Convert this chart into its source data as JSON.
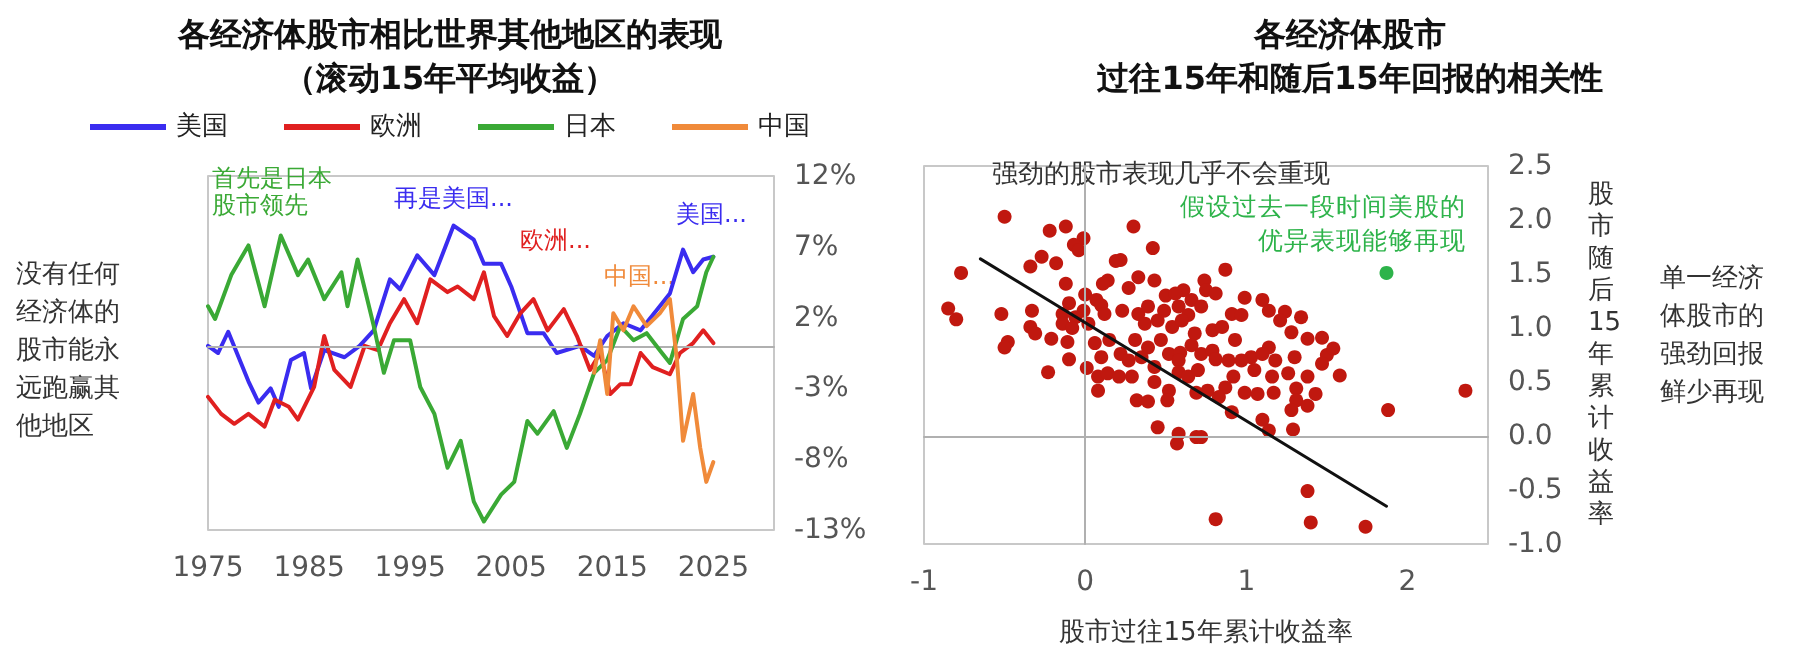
{
  "chart_data": [
    {
      "type": "line",
      "title": "各经济体股市相比世界其他地区的表现",
      "subtitle": "（滚动15年平均收益）",
      "legend": "top",
      "xlim": [
        1975,
        2031
      ],
      "xticks": [
        1975,
        1985,
        1995,
        2005,
        2015,
        2025
      ],
      "ylim": [
        -13,
        12
      ],
      "yticks": [
        {
          "value": 12,
          "label": "12%"
        },
        {
          "value": 7,
          "label": "7%"
        },
        {
          "value": 2,
          "label": "2%"
        },
        {
          "value": -3,
          "label": "-3%"
        },
        {
          "value": -8,
          "label": "-8%"
        },
        {
          "value": -13,
          "label": "-13%"
        }
      ],
      "ref_lines": [
        {
          "axis": "y",
          "value": 0,
          "color": "#b0b0b0"
        }
      ],
      "annotations": [
        "没有任何经济体的股市能永远跑赢其他地区",
        "首先是日本股市领先",
        "再是美国...",
        "欧洲...",
        "中国...",
        "美国..."
      ],
      "series": [
        {
          "name": "美国",
          "color": "#3a2cf0",
          "x": [
            1975,
            1976,
            1977,
            1979,
            1980,
            1981.2,
            1982,
            1983.2,
            1984.5,
            1985.2,
            1986.5,
            1988.5,
            1990,
            1991.4,
            1993,
            1994,
            1995.7,
            1997.4,
            1999.3,
            2001.3,
            2002.3,
            2004,
            2005,
            2006.6,
            2008.2,
            2009.5,
            2011.8,
            2013.2,
            2014.5,
            2016.1,
            2017.8,
            2019.7,
            2020.7,
            2022,
            2023,
            2024,
            2025
          ],
          "values": [
            0,
            -0.5,
            1,
            -2.5,
            -4,
            -3,
            -4.3,
            -1,
            -0.5,
            -3,
            -0.3,
            -0.8,
            0,
            1.1,
            4.7,
            4,
            6.4,
            5,
            8.5,
            7.5,
            5.8,
            5.8,
            4.2,
            0.9,
            0.9,
            -0.5,
            0,
            -0.7,
            0.7,
            1.6,
            1.1,
            2.8,
            3.7,
            6.8,
            5.2,
            6.1,
            6.3
          ]
        },
        {
          "name": "欧洲",
          "color": "#e02020",
          "x": [
            1975,
            1976.3,
            1977.6,
            1979,
            1980.6,
            1981.6,
            1983,
            1983.9,
            1985.5,
            1986.5,
            1987.5,
            1989.1,
            1990.5,
            1991.8,
            1993,
            1994.4,
            1995.7,
            1997,
            1998.7,
            1999.7,
            2001.3,
            2002.3,
            2003.3,
            2004.6,
            2005.9,
            2007.2,
            2008.6,
            2010.2,
            2011.5,
            2012.8,
            2013.8,
            2014.8,
            2015.8,
            2016.8,
            2017.8,
            2019,
            2020.7,
            2021.7,
            2023,
            2024,
            2025
          ],
          "values": [
            -3.6,
            -4.8,
            -5.5,
            -4.8,
            -5.7,
            -3.8,
            -4.3,
            -5.2,
            -2.9,
            0.7,
            -1.7,
            -2.9,
            0,
            -0.3,
            1.6,
            3.3,
            1.6,
            4.7,
            3.8,
            4.2,
            3.3,
            5.2,
            2.1,
            0.7,
            2.3,
            3.3,
            1.1,
            2.6,
            0.7,
            -1.7,
            -0.5,
            -3.4,
            -2.7,
            -2.7,
            -0.5,
            -1.5,
            -2,
            -0.5,
            0.2,
            1.1,
            0.2
          ]
        },
        {
          "name": "日本",
          "color": "#3aa935",
          "x": [
            1975,
            1975.7,
            1977.3,
            1979,
            1980.6,
            1982.2,
            1983.9,
            1984.9,
            1986.5,
            1988.2,
            1988.8,
            1989.8,
            1991.4,
            1992.4,
            1993.4,
            1995,
            1996,
            1997.4,
            1998.7,
            2000,
            2001.3,
            2002.3,
            2004,
            2005.3,
            2006.6,
            2007.6,
            2009.2,
            2010.5,
            2011.8,
            2013.2,
            2014.5,
            2015.8,
            2017.1,
            2018.4,
            2019.7,
            2020.7,
            2022,
            2023.4,
            2024.3,
            2025
          ],
          "values": [
            2.8,
            1.9,
            5,
            7.1,
            2.8,
            7.8,
            5,
            6.1,
            3.3,
            5.2,
            2.8,
            6.1,
            1.4,
            -1.9,
            0.4,
            0.4,
            -2.9,
            -4.8,
            -8.6,
            -6.7,
            -11,
            -12.4,
            -10.5,
            -9.6,
            -5.3,
            -6.2,
            -4.6,
            -7.2,
            -4.8,
            -1.9,
            -1,
            1.4,
            0.4,
            0.9,
            -0.3,
            -1.2,
            1.9,
            2.8,
            5.2,
            6.3
          ]
        },
        {
          "name": "中国",
          "color": "#f08a3a",
          "x": [
            2013.2,
            2013.8,
            2014.5,
            2015.1,
            2016.1,
            2017.1,
            2018.4,
            2019.7,
            2020.7,
            2021.4,
            2022,
            2023,
            2023.7,
            2024.3,
            2025
          ],
          "values": [
            -1.9,
            0.4,
            -3.4,
            2.3,
            1.1,
            2.8,
            1.4,
            2.3,
            3.3,
            -1,
            -6.7,
            -3.4,
            -7.2,
            -9.6,
            -8.2
          ]
        }
      ]
    },
    {
      "type": "scatter",
      "title": "各经济体股市",
      "subtitle": "过往15年和随后15年回报的相关性",
      "xlabel": "股市过往15年累计收益率",
      "ylabel": "股市随后15年累计收益率",
      "xlim": [
        -1,
        2.5
      ],
      "xticks": [
        -1,
        0,
        1,
        2
      ],
      "ylim": [
        -1,
        2.5
      ],
      "yticks": [
        2.5,
        {
          "value": 2,
          "label": "2.0"
        },
        1.5,
        {
          "value": 1,
          "label": "1.0"
        },
        0.5,
        {
          "value": 0,
          "label": "0.0"
        },
        -0.5,
        {
          "value": -1,
          "label": "-1.0"
        }
      ],
      "ref_lines": [
        {
          "axis": "x",
          "value": 0,
          "color": "#b0b0b0"
        },
        {
          "axis": "y",
          "value": 0,
          "color": "#b0b0b0"
        }
      ],
      "annotations": [
        "强劲的股市表现几乎不会重现",
        "单一经济体股市的强劲回报鲜少再现",
        {
          "text": "假设过去一段时间美股的优异表现能够再现",
          "x": 1.87,
          "y": 1.51
        }
      ],
      "series": [
        {
          "color": "#c0180f",
          "x": [
            -0.5,
            0.3,
            -0.12,
            -0.22,
            -0.01,
            -0.07,
            -0.04,
            0.42,
            -0.27,
            -0.18,
            -0.34,
            -0.77,
            0.22,
            0.19,
            0.87,
            0.33,
            0.43,
            0.14,
            0.11,
            0.74,
            -0.12,
            0.75,
            0.61,
            0.27,
            0.5,
            0.56,
            0.81,
            0.99,
            1.1,
            0,
            -0.1,
            0.07,
            0.1,
            0.66,
            -0.85,
            -0.8,
            -0.52,
            -0.33,
            -0.14,
            -0.01,
            -0.06,
            0.12,
            0.23,
            0.33,
            0.39,
            0.49,
            0.58,
            0.64,
            0.72,
            0.91,
            0.97,
            1.14,
            1.24,
            1.34,
            1.21,
            -0.14,
            0.02,
            -0.34,
            -0.08,
            -0.31,
            0.37,
            0.45,
            0.54,
            0.6,
            0.68,
            0.79,
            0.85,
            1.38,
            1.47,
            -0.48,
            -0.5,
            -0.21,
            -0.11,
            0.06,
            0.15,
            0.22,
            0.31,
            0.39,
            0.47,
            0.52,
            0.59,
            0.66,
            0.72,
            0.79,
            0.93,
            1.03,
            1.14,
            1.28,
            1.5,
            1.54,
            -0.23,
            -0.1,
            0.01,
            0.1,
            0.27,
            0.35,
            0.58,
            0.81,
            0.89,
            0.97,
            1.1,
            1.18,
            1.3,
            1.47,
            1.58,
            0.08,
            0.14,
            0.21,
            0.29,
            0.43,
            0.58,
            0.64,
            0.7,
            0.92,
            1.05,
            1.16,
            1.26,
            1.38,
            0.08,
            0.43,
            0.52,
            0.69,
            0.76,
            0.87,
            0.99,
            1.07,
            1.17,
            1.31,
            1.43,
            0.32,
            0.39,
            0.51,
            0.83,
            1.31,
            1.38,
            0.91,
            1.1,
            1.28,
            1.88,
            2.36,
            0.45,
            0.58,
            0.57,
            0.69,
            0.72,
            1.14,
            1.29,
            1.38,
            0.81,
            1.4,
            1.74
          ],
          "values": [
            2.03,
            1.94,
            1.94,
            1.9,
            1.83,
            1.77,
            1.72,
            1.74,
            1.66,
            1.6,
            1.57,
            1.51,
            1.63,
            1.62,
            1.54,
            1.47,
            1.44,
            1.44,
            1.41,
            1.44,
            1.41,
            1.35,
            1.35,
            1.37,
            1.3,
            1.32,
            1.32,
            1.28,
            1.26,
            1.31,
            1.23,
            1.26,
            1.21,
            1.26,
            1.18,
            1.08,
            1.13,
            1.16,
            1.13,
            1.16,
            1.1,
            1.13,
            1.16,
            1.13,
            1.2,
            1.16,
            1.2,
            1.12,
            1.2,
            1.13,
            1.12,
            1.16,
            1.15,
            1.1,
            1.07,
            1.04,
            1.04,
            1.01,
            1,
            0.95,
            1.04,
            1.07,
            1.01,
            1.07,
            0.95,
            0.98,
            1.01,
            0.9,
            0.91,
            0.87,
            0.82,
            0.9,
            0.87,
            0.86,
            0.89,
            0.76,
            0.89,
            0.82,
            0.89,
            0.76,
            0.77,
            0.84,
            0.76,
            0.79,
            0.89,
            0.73,
            0.82,
            0.96,
            0.75,
            0.81,
            0.59,
            0.71,
            0.63,
            0.73,
            0.7,
            0.73,
            0.7,
            0.71,
            0.7,
            0.7,
            0.76,
            0.7,
            0.73,
            0.67,
            0.56,
            0.55,
            0.58,
            0.55,
            0.55,
            0.64,
            0.59,
            0.55,
            0.61,
            0.55,
            0.61,
            0.55,
            0.58,
            0.55,
            0.42,
            0.5,
            0.42,
            0.4,
            0.42,
            0.45,
            0.4,
            0.39,
            0.4,
            0.44,
            0.39,
            0.33,
            0.32,
            0.33,
            0.36,
            0.33,
            0.28,
            0.22,
            0.15,
            0.24,
            0.24,
            0.42,
            0.08,
            0.02,
            -0.07,
            -0.01,
            -0.01,
            0.05,
            0.06,
            -0.51,
            -0.77,
            -0.8,
            -0.84
          ]
        },
        {
          "color": "#2db34a",
          "x": [
            1.87
          ],
          "values": [
            1.51
          ]
        },
        {
          "type": "line",
          "color": "#111111",
          "x": [
            -0.65,
            1.87
          ],
          "values": [
            1.64,
            -0.65
          ]
        }
      ]
    }
  ]
}
